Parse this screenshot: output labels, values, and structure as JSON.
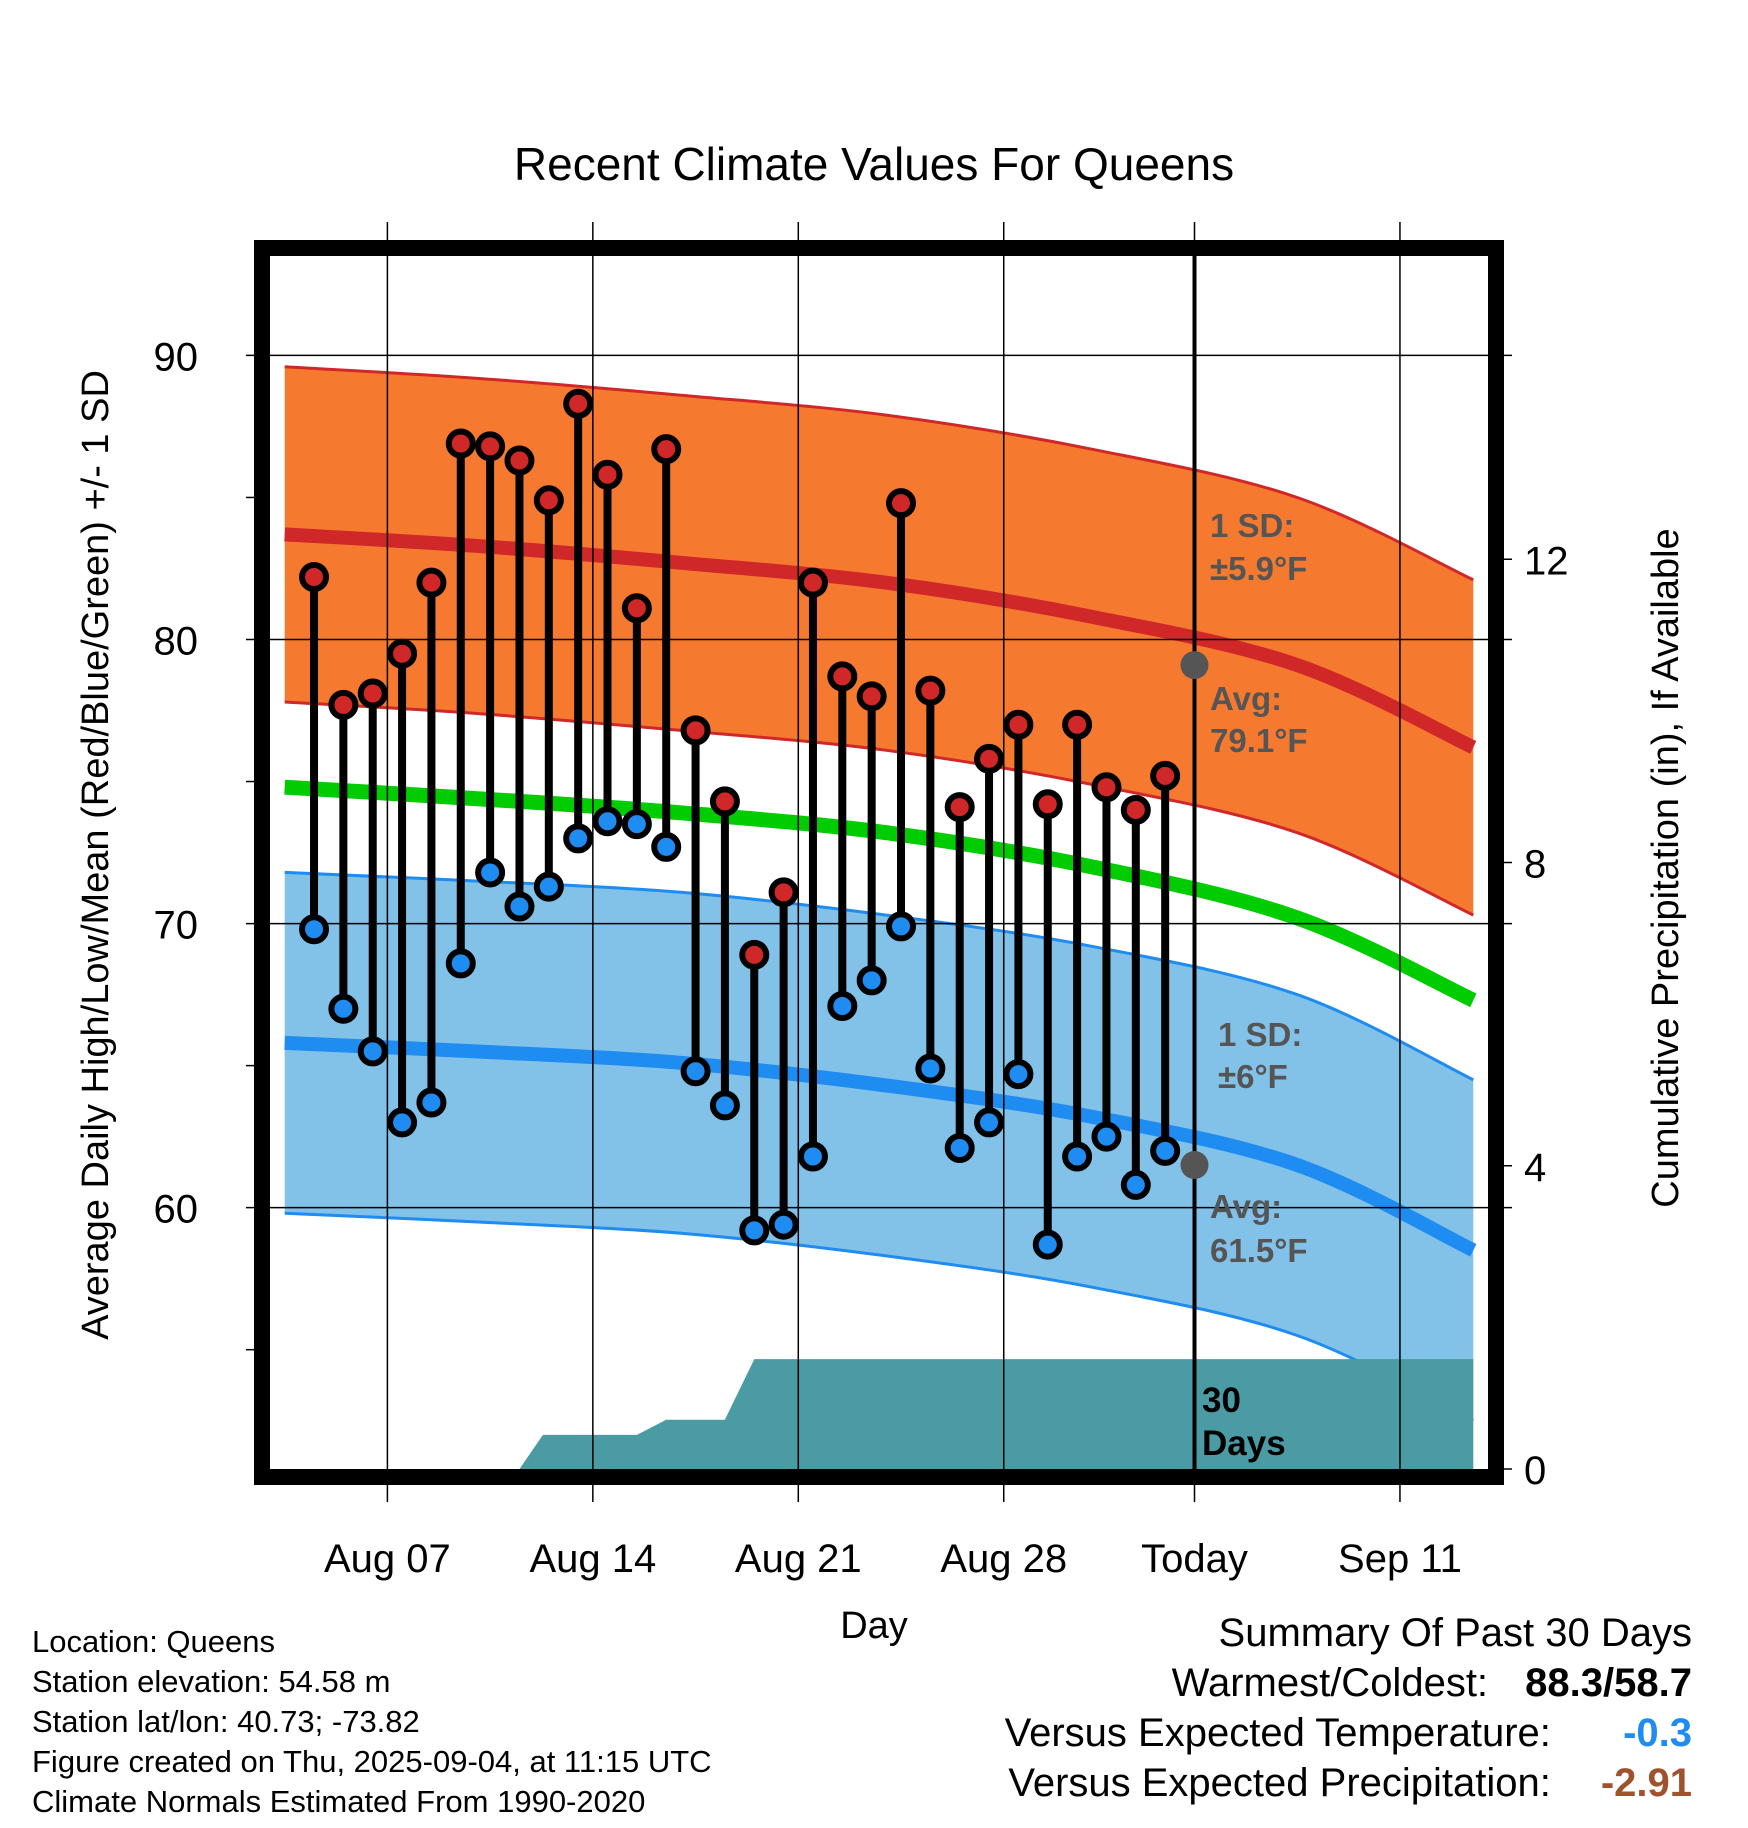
{
  "chart_data": {
    "type": "line",
    "title": "Recent Climate Values For Queens",
    "xlabel": "Day",
    "ylabel": "Average Daily High/Low/Mean (Red/Blue/Green) +/- 1 SD",
    "y2label": "Cumulative Precipitation (in), If Available",
    "x_ticks": [
      "Aug 07",
      "Aug 14",
      "Aug 21",
      "Aug 28",
      "Today",
      "Sep 11"
    ],
    "y_ticks": [
      "90",
      "80",
      "70",
      "60"
    ],
    "y2_ticks": [
      "12",
      "8",
      "4",
      "0"
    ],
    "today_label": [
      "30",
      "Days"
    ],
    "high_sd_label": [
      "1 SD:",
      "±5.9°F"
    ],
    "high_avg_label": [
      "Avg:",
      "79.1°F"
    ],
    "low_sd_label": [
      "1 SD:",
      "±6°F"
    ],
    "low_avg_label": [
      "Avg:",
      "61.5°F"
    ],
    "colors": {
      "high_band": "#f57a30",
      "high_line": "#d02828",
      "low_band": "#82c1e8",
      "low_line": "#1e8cf0",
      "mean_line": "#00cc00",
      "precip": "#4a9ba3",
      "high_dot": "#d02828",
      "low_dot": "#1e8cf0"
    },
    "normals": {
      "days": [
        0,
        6.5,
        13.5,
        20.5,
        27.5,
        34.5,
        40.5
      ],
      "high_avg": [
        83.7,
        83.3,
        82.7,
        82.0,
        80.8,
        79.1,
        76.2
      ],
      "high_sd": 5.9,
      "low_avg": [
        65.8,
        65.5,
        65.1,
        64.3,
        63.2,
        61.5,
        58.5
      ],
      "low_sd": 6.0,
      "mean": [
        74.8,
        74.4,
        73.9,
        73.2,
        72.0,
        70.2,
        67.3
      ]
    },
    "days": [
      1,
      2,
      3,
      4,
      5,
      6,
      7,
      8,
      9,
      10,
      11,
      12,
      13,
      14,
      15,
      16,
      17,
      18,
      19,
      20,
      21,
      22,
      23,
      24,
      25,
      26,
      27,
      28,
      29,
      30
    ],
    "highs": [
      82.2,
      77.7,
      78.1,
      79.5,
      82.0,
      86.9,
      86.8,
      86.3,
      84.9,
      88.3,
      85.8,
      81.1,
      86.7,
      76.8,
      74.3,
      68.9,
      71.1,
      82.0,
      78.7,
      78.0,
      84.8,
      78.2,
      74.1,
      75.8,
      77.0,
      74.2,
      77.0,
      74.8,
      74.0,
      75.2
    ],
    "lows": [
      69.8,
      67.0,
      65.5,
      63.0,
      63.7,
      68.6,
      71.8,
      70.6,
      71.3,
      73.0,
      73.6,
      73.5,
      72.7,
      64.8,
      63.6,
      59.2,
      59.4,
      61.8,
      67.1,
      68.0,
      69.9,
      64.9,
      62.1,
      63.0,
      64.7,
      58.7,
      61.8,
      62.5,
      60.8,
      62.0
    ],
    "today_day": 31,
    "x_tick_days": [
      3.5,
      10.5,
      17.5,
      24.5,
      31,
      38
    ],
    "xlim": [
      -0.5,
      41
    ],
    "ylim": [
      50.8,
      93.5
    ],
    "y2lim": [
      0,
      16
    ],
    "precip": {
      "days": [
        0,
        8,
        8.8,
        12,
        13,
        15,
        16,
        20,
        40.5
      ],
      "values": [
        0,
        0,
        0.45,
        0.45,
        0.65,
        0.65,
        1.45,
        1.45,
        1.45
      ]
    }
  },
  "info": {
    "location": "Location: Queens",
    "elevation": "Station elevation: 54.58 m",
    "latlon": "Station lat/lon: 40.73; -73.82",
    "created": "Figure created on Thu, 2025-09-04, at 11:15 UTC",
    "normals": "Climate Normals Estimated From 1990-2020"
  },
  "summary": {
    "heading": "Summary Of Past 30 Days",
    "warm_cold_label": "Warmest/Coldest:",
    "warm_cold_value": "88.3/58.7",
    "temp_label": "Versus Expected Temperature:",
    "temp_value": "-0.3",
    "temp_color": "#1e8cf0",
    "precip_label": "Versus Expected Precipitation:",
    "precip_value": "-2.91",
    "precip_color": "#a0522d"
  }
}
